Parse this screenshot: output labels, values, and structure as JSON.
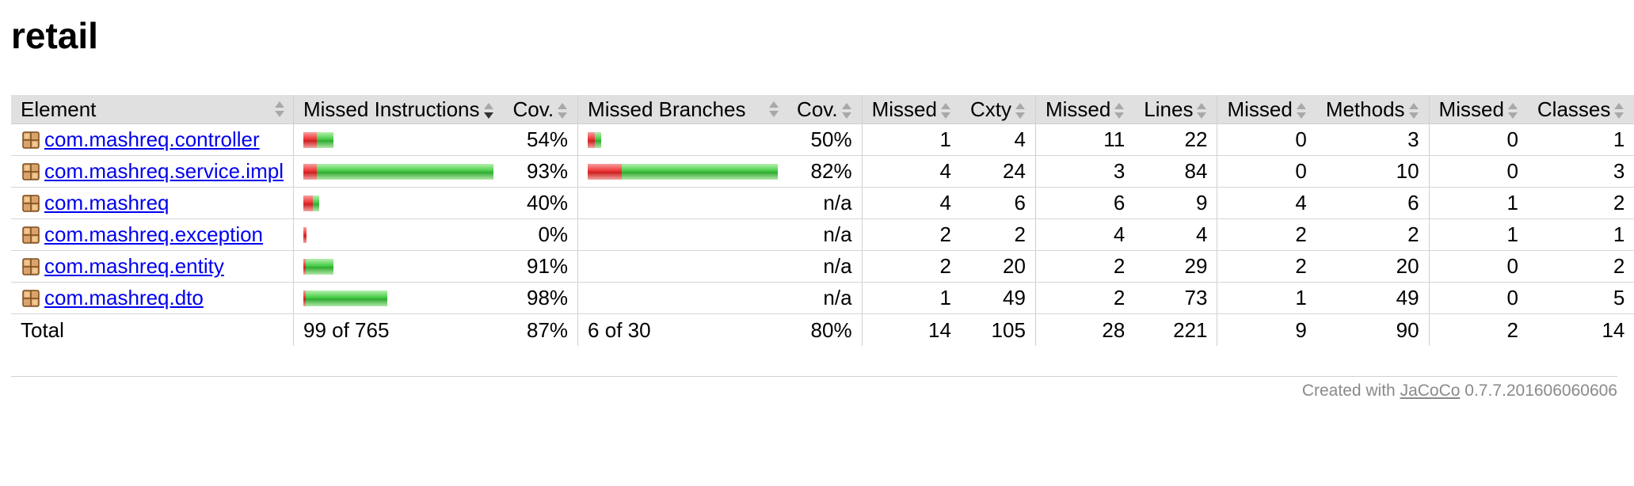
{
  "page": {
    "title": "retail"
  },
  "table": {
    "headers": {
      "element": "Element",
      "missed_instructions": "Missed Instructions",
      "cov1": "Cov.",
      "missed_branches": "Missed Branches",
      "cov2": "Cov.",
      "missed_cxty": "Missed",
      "cxty": "Cxty",
      "missed_lines": "Missed",
      "lines": "Lines",
      "missed_methods": "Missed",
      "methods": "Methods",
      "missed_classes": "Missed",
      "classes": "Classes"
    },
    "rows": [
      {
        "name": "com.mashreq.controller",
        "instr_cov": "54%",
        "instr_missed_frac": 0.46,
        "instr_width_frac": 0.16,
        "branch_cov": "50%",
        "branch_missed_frac": 0.5,
        "branch_width_frac": 0.07,
        "missed_cxty": "1",
        "cxty": "4",
        "missed_lines": "11",
        "lines": "22",
        "missed_methods": "0",
        "methods": "3",
        "missed_classes": "0",
        "classes": "1"
      },
      {
        "name": "com.mashreq.service.impl",
        "instr_cov": "93%",
        "instr_missed_frac": 0.07,
        "instr_width_frac": 1.0,
        "branch_cov": "82%",
        "branch_missed_frac": 0.18,
        "branch_width_frac": 1.0,
        "missed_cxty": "4",
        "cxty": "24",
        "missed_lines": "3",
        "lines": "84",
        "missed_methods": "0",
        "methods": "10",
        "missed_classes": "0",
        "classes": "3"
      },
      {
        "name": "com.mashreq",
        "instr_cov": "40%",
        "instr_missed_frac": 0.6,
        "instr_width_frac": 0.085,
        "branch_cov": "n/a",
        "branch_missed_frac": 0,
        "branch_width_frac": 0,
        "missed_cxty": "4",
        "cxty": "6",
        "missed_lines": "6",
        "lines": "9",
        "missed_methods": "4",
        "methods": "6",
        "missed_classes": "1",
        "classes": "2"
      },
      {
        "name": "com.mashreq.exception",
        "instr_cov": "0%",
        "instr_missed_frac": 1.0,
        "instr_width_frac": 0.015,
        "branch_cov": "n/a",
        "branch_missed_frac": 0,
        "branch_width_frac": 0,
        "missed_cxty": "2",
        "cxty": "2",
        "missed_lines": "4",
        "lines": "4",
        "missed_methods": "2",
        "methods": "2",
        "missed_classes": "1",
        "classes": "1"
      },
      {
        "name": "com.mashreq.entity",
        "instr_cov": "91%",
        "instr_missed_frac": 0.09,
        "instr_width_frac": 0.16,
        "branch_cov": "n/a",
        "branch_missed_frac": 0,
        "branch_width_frac": 0,
        "missed_cxty": "2",
        "cxty": "20",
        "missed_lines": "2",
        "lines": "29",
        "missed_methods": "2",
        "methods": "20",
        "missed_classes": "0",
        "classes": "2"
      },
      {
        "name": "com.mashreq.dto",
        "instr_cov": "98%",
        "instr_missed_frac": 0.02,
        "instr_width_frac": 0.44,
        "branch_cov": "n/a",
        "branch_missed_frac": 0,
        "branch_width_frac": 0,
        "missed_cxty": "1",
        "cxty": "49",
        "missed_lines": "2",
        "lines": "73",
        "missed_methods": "1",
        "methods": "49",
        "missed_classes": "0",
        "classes": "5"
      }
    ],
    "total": {
      "label": "Total",
      "instr": "99 of 765",
      "instr_cov": "87%",
      "branch": "6 of 30",
      "branch_cov": "80%",
      "missed_cxty": "14",
      "cxty": "105",
      "missed_lines": "28",
      "lines": "221",
      "missed_methods": "9",
      "methods": "90",
      "missed_classes": "2",
      "classes": "14"
    }
  },
  "footer": {
    "prefix": "Created with",
    "link": "JaCoCo",
    "version": "0.7.7.201606060606"
  }
}
